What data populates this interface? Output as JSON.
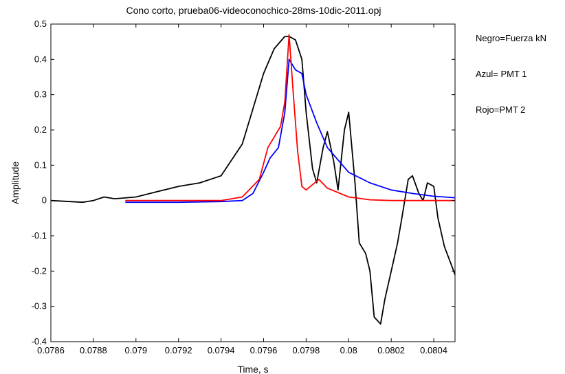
{
  "notes": [
    "Negro=Fuerza kN",
    "Azul= PMT 1",
    "Rojo=PMT 2"
  ],
  "chart_data": {
    "type": "line",
    "title": "Cono corto, prueba06-videoconochico-28ms-10dic-2011.opj",
    "xlabel": "Time, s",
    "ylabel": "Amplitude",
    "xlim": [
      0.0786,
      0.0805
    ],
    "ylim": [
      -0.4,
      0.5
    ],
    "xticks": [
      0.0786,
      0.0788,
      0.079,
      0.0792,
      0.0794,
      0.0796,
      0.0798,
      0.08,
      0.0802,
      0.0804
    ],
    "xtick_labels": [
      "0.0786",
      "0.0788",
      "0.079",
      "0.0792",
      "0.0794",
      "0.0796",
      "0.0798",
      "0.08",
      "0.0802",
      "0.0804"
    ],
    "yticks": [
      -0.4,
      -0.3,
      -0.2,
      -0.1,
      0,
      0.1,
      0.2,
      0.3,
      0.4,
      0.5
    ],
    "ytick_labels": [
      "-0.4",
      "-0.3",
      "-0.2",
      "-0.1",
      "0",
      "0.1",
      "0.2",
      "0.3",
      "0.4",
      "0.5"
    ],
    "grid": false,
    "series": [
      {
        "color": "#000000",
        "x": [
          0.0786,
          0.07875,
          0.0788,
          0.07885,
          0.0789,
          0.079,
          0.0791,
          0.0792,
          0.0793,
          0.0794,
          0.0795,
          0.0796,
          0.07965,
          0.0797,
          0.07972,
          0.07975,
          0.07978,
          0.0798,
          0.07983,
          0.07985,
          0.07988,
          0.0799,
          0.07993,
          0.07995,
          0.07998,
          0.08,
          0.08003,
          0.08005,
          0.08008,
          0.0801,
          0.08012,
          0.08015,
          0.08017,
          0.0802,
          0.08023,
          0.08025,
          0.08028,
          0.0803,
          0.08033,
          0.08035,
          0.08037,
          0.0804,
          0.08042,
          0.08045,
          0.0805
        ],
        "y": [
          0,
          -0.005,
          0,
          0.01,
          0.005,
          0.01,
          0.025,
          0.04,
          0.05,
          0.07,
          0.16,
          0.36,
          0.43,
          0.465,
          0.465,
          0.455,
          0.4,
          0.25,
          0.09,
          0.05,
          0.15,
          0.195,
          0.11,
          0.03,
          0.2,
          0.25,
          0.05,
          -0.12,
          -0.15,
          -0.2,
          -0.33,
          -0.35,
          -0.28,
          -0.2,
          -0.12,
          -0.05,
          0.06,
          0.07,
          0.02,
          0.0,
          0.05,
          0.04,
          -0.05,
          -0.13,
          -0.21
        ]
      },
      {
        "color": "#0000ff",
        "x": [
          0.07895,
          0.0792,
          0.0794,
          0.0795,
          0.07955,
          0.0796,
          0.07963,
          0.07967,
          0.0797,
          0.07972,
          0.07974,
          0.07975,
          0.07978,
          0.0798,
          0.07985,
          0.0799,
          0.08,
          0.0801,
          0.0802,
          0.0803,
          0.0804,
          0.0805
        ],
        "y": [
          -0.005,
          -0.005,
          -0.003,
          0,
          0.02,
          0.08,
          0.12,
          0.15,
          0.25,
          0.4,
          0.38,
          0.37,
          0.36,
          0.3,
          0.22,
          0.15,
          0.08,
          0.05,
          0.03,
          0.02,
          0.012,
          0.008
        ]
      },
      {
        "color": "#ff0000",
        "x": [
          0.07895,
          0.0792,
          0.0794,
          0.0795,
          0.07958,
          0.07962,
          0.07965,
          0.07968,
          0.0797,
          0.07972,
          0.07974,
          0.07976,
          0.07978,
          0.0798,
          0.07983,
          0.07986,
          0.0799,
          0.08,
          0.0801,
          0.0802,
          0.0803,
          0.0805
        ],
        "y": [
          0,
          0,
          0,
          0.01,
          0.06,
          0.15,
          0.18,
          0.21,
          0.28,
          0.47,
          0.3,
          0.14,
          0.04,
          0.03,
          0.045,
          0.06,
          0.035,
          0.01,
          0.002,
          0.0,
          0.0,
          0.0
        ]
      }
    ]
  }
}
